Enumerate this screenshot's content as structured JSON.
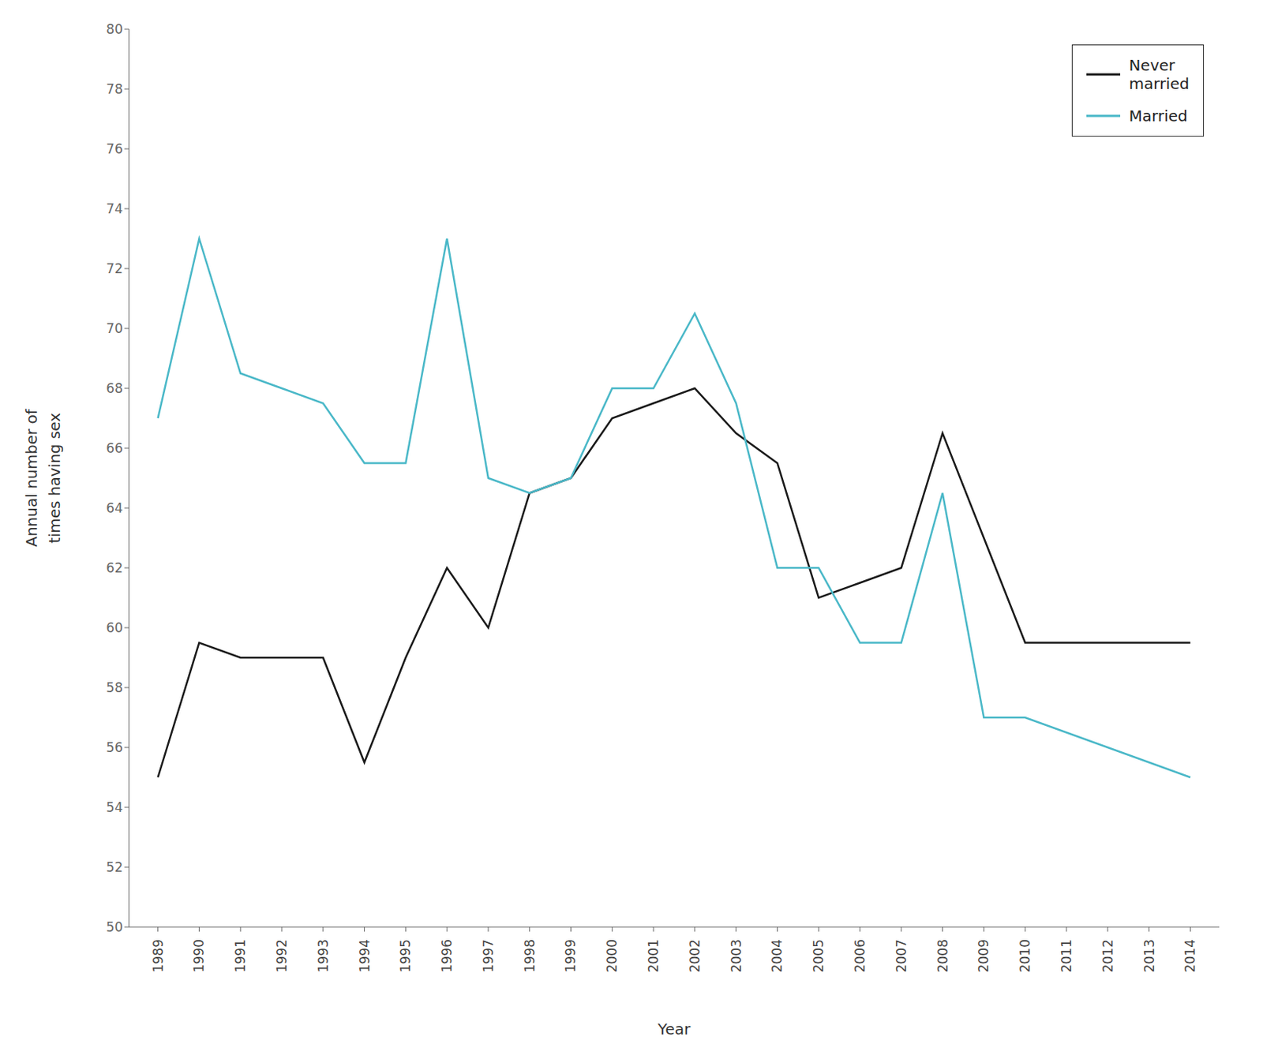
{
  "chart_data": {
    "type": "line",
    "xlabel": "Year",
    "ylabel": "Annual number of\ntimes having sex",
    "x": [
      1989,
      1990,
      1991,
      1992,
      1993,
      1994,
      1995,
      1996,
      1997,
      1998,
      1999,
      2000,
      2001,
      2002,
      2003,
      2004,
      2005,
      2006,
      2007,
      2008,
      2009,
      2010,
      2014
    ],
    "series": [
      {
        "name": "Never\nmarried",
        "color": "#1a1a1a",
        "values": [
          55,
          59.5,
          59,
          59,
          59,
          55.5,
          59,
          62,
          60,
          64.5,
          65,
          67,
          67.5,
          68,
          66.5,
          65.5,
          61,
          61.5,
          62,
          66.5,
          63,
          59.5,
          59.5
        ]
      },
      {
        "name": "Married",
        "color": "#4ab8c8",
        "values": [
          67,
          73,
          68.5,
          68,
          67.5,
          65.5,
          65.5,
          73,
          65,
          64.5,
          65,
          68,
          68,
          70.5,
          67.5,
          62,
          62,
          59.5,
          59.5,
          64.5,
          57,
          57,
          55
        ]
      }
    ],
    "xlim": [
      1988.3,
      2014.7
    ],
    "xticks": [
      1989,
      1990,
      1991,
      1992,
      1993,
      1994,
      1995,
      1996,
      1997,
      1998,
      1999,
      2000,
      2001,
      2002,
      2003,
      2004,
      2005,
      2006,
      2007,
      2008,
      2009,
      2010,
      2011,
      2012,
      2013,
      2014
    ],
    "ylim": [
      50,
      80
    ],
    "yticks": [
      50,
      52,
      54,
      56,
      58,
      60,
      62,
      64,
      66,
      68,
      70,
      72,
      74,
      76,
      78,
      80
    ],
    "grid": false,
    "legend": "upper right"
  }
}
